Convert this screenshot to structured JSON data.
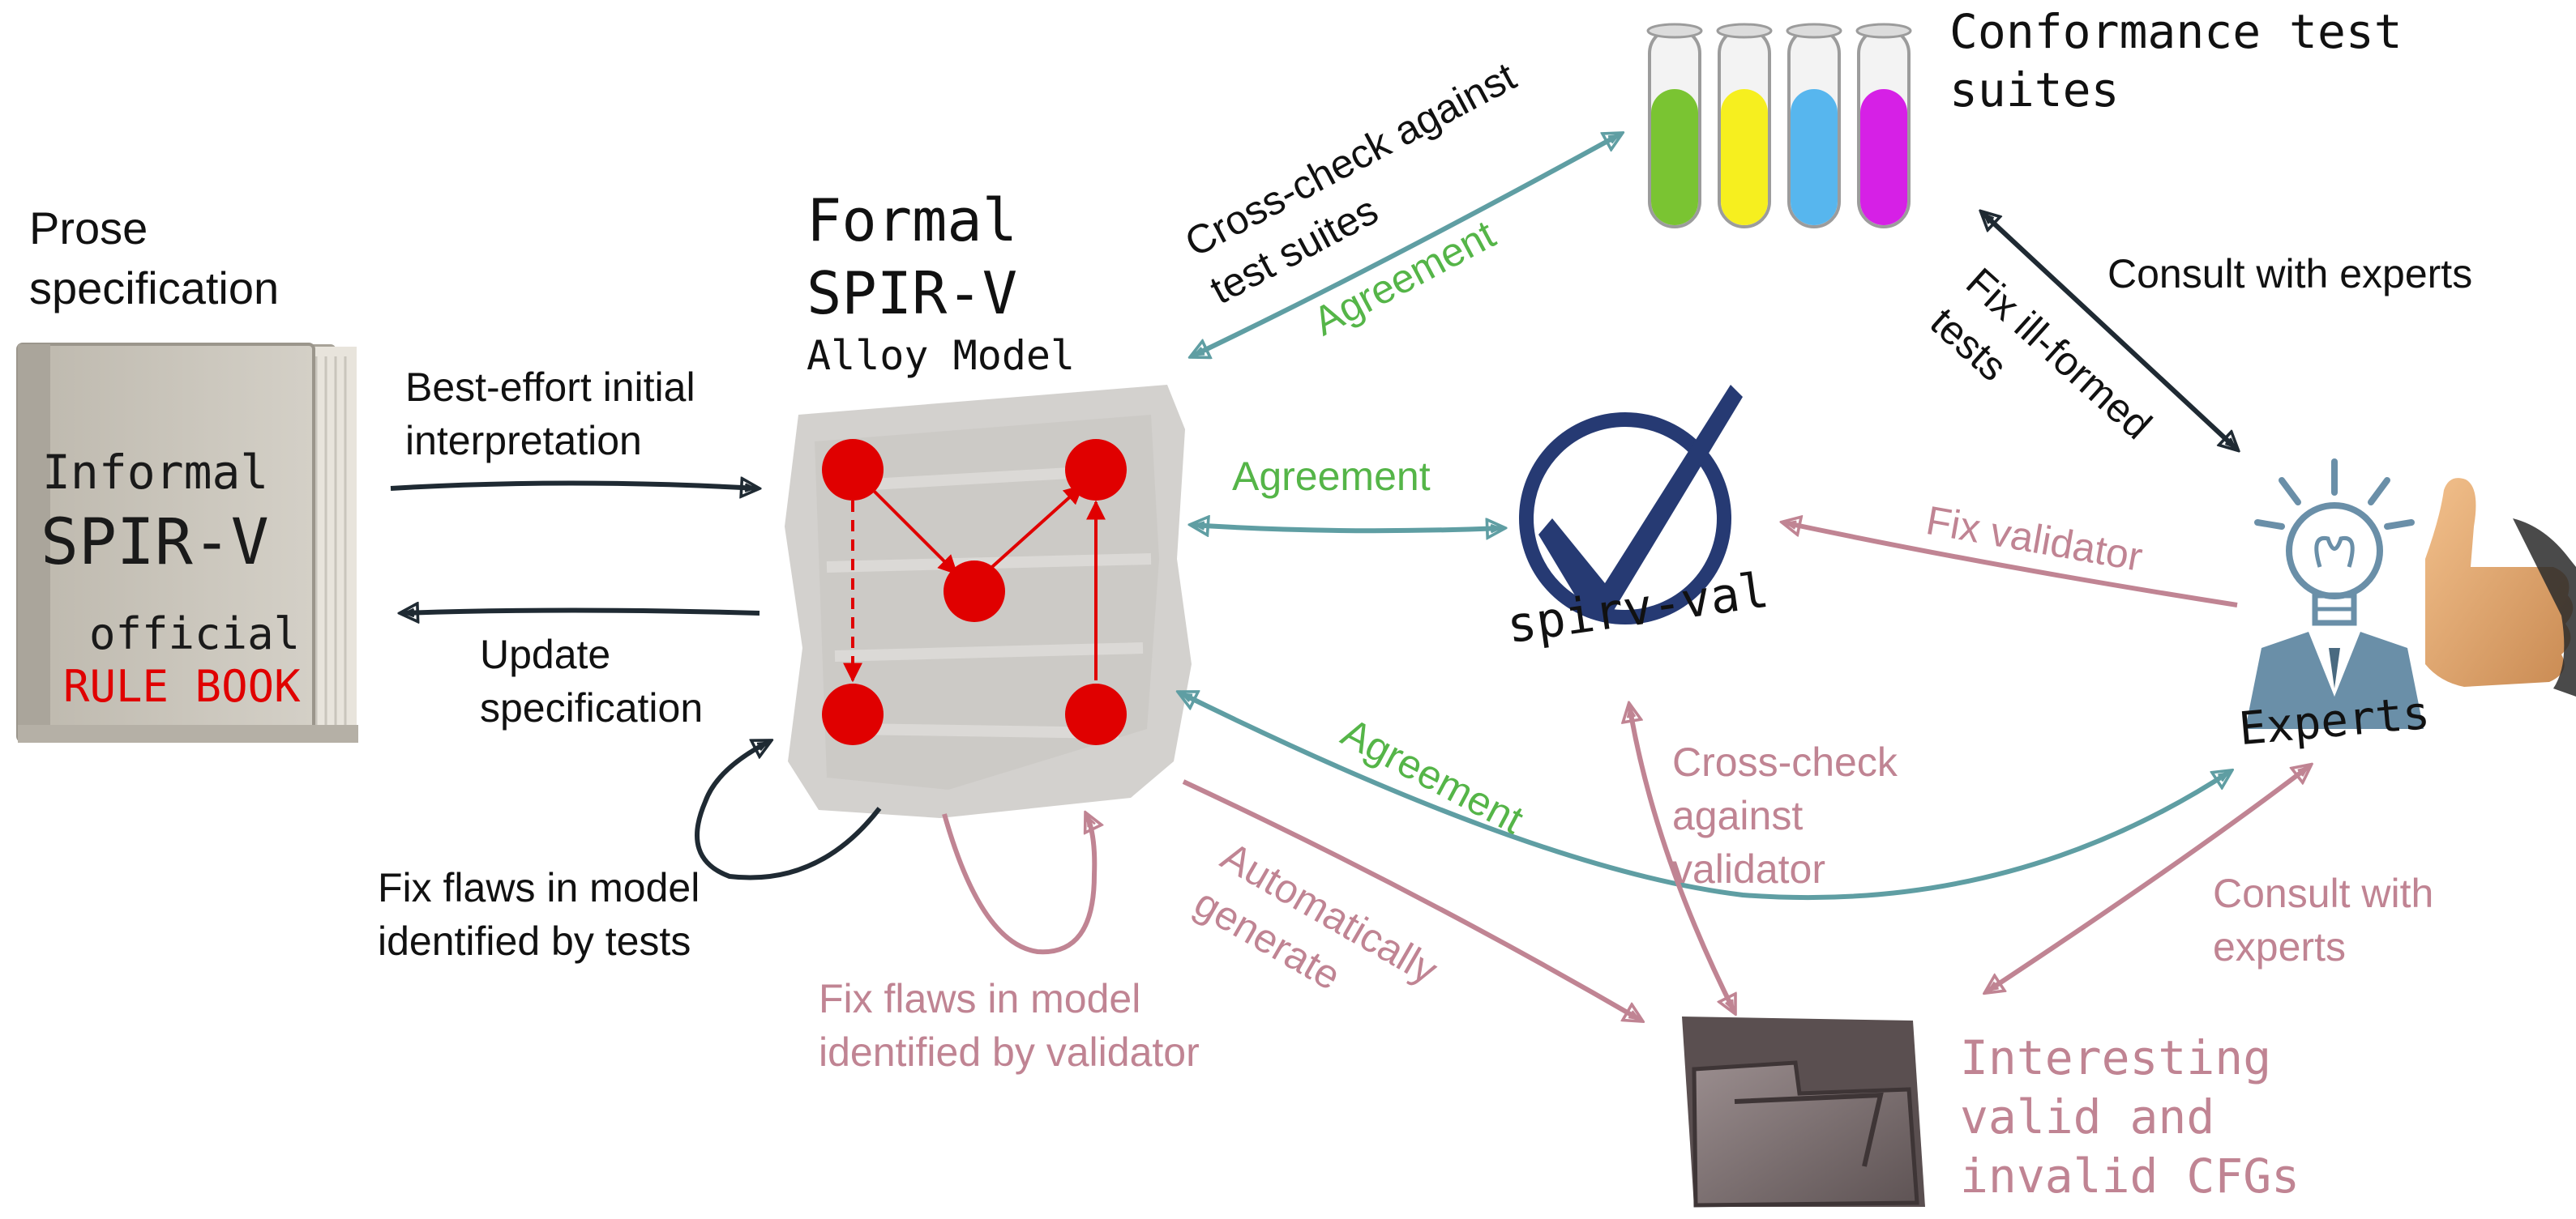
{
  "colors": {
    "black": "#1f2a33",
    "teal": "#5f9ea3",
    "rose": "#c08493",
    "green": "#55b548",
    "red": "#e00000",
    "navy": "#263a73"
  },
  "prose_spec": {
    "title": "Prose\nspecification",
    "book_line1": "Informal",
    "book_line2": "SPIR-V",
    "book_line3": "official",
    "book_line4": "RULE BOOK"
  },
  "formal_model": {
    "title_line1": "Formal",
    "title_line2": "SPIR-V",
    "subtitle": "Alloy Model"
  },
  "conformance": {
    "title": "Conformance test\nsuites"
  },
  "validator": {
    "label": "spirv-val"
  },
  "experts": {
    "label": "Experts"
  },
  "cfgs": {
    "label": "Interesting\nvalid and\ninvalid CFGs"
  },
  "edges": {
    "best_effort": "Best-effort initial\ninterpretation",
    "update_spec": "Update\nspecification",
    "fix_model_tests": "Fix flaws in model\nidentified by tests",
    "fix_model_validator": "Fix flaws in model\nidentified by validator",
    "cross_check_tests": "Cross-check against\ntest suites",
    "agreement_tests": "Agreement",
    "agreement_validator": "Agreement",
    "agreement_experts": "Agreement",
    "consult_experts_top": "Consult with experts",
    "fix_ill_formed": "Fix ill-formed\ntests",
    "fix_validator": "Fix validator",
    "cross_check_validator": "Cross-check\nagainst\nvalidator",
    "auto_generate": "Automatically\ngenerate",
    "consult_experts_bottom": "Consult with\nexperts"
  }
}
